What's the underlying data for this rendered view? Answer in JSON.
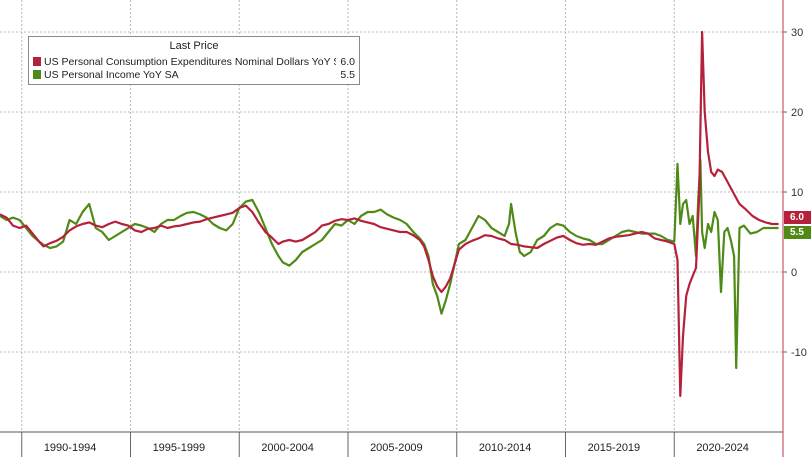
{
  "chart_data": {
    "type": "line",
    "legend": {
      "title": "Last Price",
      "placement": "top-left"
    },
    "x_periods": [
      "1990-1994",
      "1995-1999",
      "2000-2004",
      "2005-2009",
      "2010-2014",
      "2015-2019",
      "2020-2024"
    ],
    "x_range": [
      1989.0,
      2025.0
    ],
    "y_ticks": [
      -10,
      0,
      10,
      20,
      30
    ],
    "ylim": [
      -19,
      31
    ],
    "y_axis_side": "right",
    "grid": true,
    "series": [
      {
        "name": "US Personal Consumption Expenditures Nominal Dollars YoY SA",
        "last_value": 6.0,
        "last_label": "6.0",
        "color": "#b5213a",
        "points": [
          [
            1989.0,
            7.2
          ],
          [
            1989.3,
            6.8
          ],
          [
            1989.6,
            5.8
          ],
          [
            1989.9,
            5.5
          ],
          [
            1990.2,
            5.8
          ],
          [
            1990.5,
            4.8
          ],
          [
            1990.8,
            3.8
          ],
          [
            1991.0,
            3.2
          ],
          [
            1991.3,
            3.6
          ],
          [
            1991.6,
            3.9
          ],
          [
            1991.9,
            4.4
          ],
          [
            1992.2,
            5.2
          ],
          [
            1992.5,
            5.7
          ],
          [
            1992.8,
            6.0
          ],
          [
            1993.1,
            6.2
          ],
          [
            1993.4,
            5.8
          ],
          [
            1993.7,
            5.6
          ],
          [
            1994.0,
            6.0
          ],
          [
            1994.3,
            6.3
          ],
          [
            1994.6,
            6.0
          ],
          [
            1994.9,
            5.8
          ],
          [
            1995.2,
            5.2
          ],
          [
            1995.5,
            5.0
          ],
          [
            1995.8,
            5.4
          ],
          [
            1996.1,
            5.5
          ],
          [
            1996.4,
            5.8
          ],
          [
            1996.7,
            5.5
          ],
          [
            1997.0,
            5.7
          ],
          [
            1997.3,
            5.8
          ],
          [
            1997.6,
            6.0
          ],
          [
            1997.9,
            6.2
          ],
          [
            1998.2,
            6.3
          ],
          [
            1998.5,
            6.6
          ],
          [
            1998.8,
            6.8
          ],
          [
            1999.1,
            7.0
          ],
          [
            1999.4,
            7.2
          ],
          [
            1999.7,
            7.4
          ],
          [
            2000.0,
            8.0
          ],
          [
            2000.3,
            8.3
          ],
          [
            2000.6,
            7.5
          ],
          [
            2000.9,
            6.2
          ],
          [
            2001.2,
            5.0
          ],
          [
            2001.5,
            4.3
          ],
          [
            2001.8,
            3.5
          ],
          [
            2002.0,
            3.8
          ],
          [
            2002.3,
            4.0
          ],
          [
            2002.6,
            3.8
          ],
          [
            2002.9,
            4.0
          ],
          [
            2003.2,
            4.5
          ],
          [
            2003.5,
            5.0
          ],
          [
            2003.8,
            5.8
          ],
          [
            2004.1,
            6.0
          ],
          [
            2004.4,
            6.4
          ],
          [
            2004.7,
            6.6
          ],
          [
            2005.0,
            6.5
          ],
          [
            2005.3,
            6.7
          ],
          [
            2005.6,
            6.4
          ],
          [
            2005.9,
            6.2
          ],
          [
            2006.2,
            6.0
          ],
          [
            2006.5,
            5.6
          ],
          [
            2006.8,
            5.4
          ],
          [
            2007.1,
            5.2
          ],
          [
            2007.4,
            5.0
          ],
          [
            2007.7,
            5.0
          ],
          [
            2008.0,
            4.6
          ],
          [
            2008.3,
            4.0
          ],
          [
            2008.5,
            3.2
          ],
          [
            2008.7,
            1.5
          ],
          [
            2008.9,
            -0.5
          ],
          [
            2009.1,
            -1.8
          ],
          [
            2009.3,
            -2.5
          ],
          [
            2009.5,
            -1.8
          ],
          [
            2009.7,
            -0.8
          ],
          [
            2009.9,
            1.0
          ],
          [
            2010.1,
            2.8
          ],
          [
            2010.4,
            3.5
          ],
          [
            2010.7,
            3.9
          ],
          [
            2011.0,
            4.2
          ],
          [
            2011.3,
            4.6
          ],
          [
            2011.6,
            4.5
          ],
          [
            2011.9,
            4.2
          ],
          [
            2012.2,
            4.0
          ],
          [
            2012.5,
            3.5
          ],
          [
            2012.8,
            3.4
          ],
          [
            2013.1,
            3.2
          ],
          [
            2013.4,
            3.1
          ],
          [
            2013.7,
            3.0
          ],
          [
            2014.0,
            3.5
          ],
          [
            2014.3,
            3.9
          ],
          [
            2014.6,
            4.3
          ],
          [
            2014.9,
            4.5
          ],
          [
            2015.2,
            4.0
          ],
          [
            2015.5,
            3.6
          ],
          [
            2015.8,
            3.4
          ],
          [
            2016.1,
            3.5
          ],
          [
            2016.4,
            3.4
          ],
          [
            2016.7,
            3.8
          ],
          [
            2017.0,
            4.2
          ],
          [
            2017.3,
            4.4
          ],
          [
            2017.6,
            4.5
          ],
          [
            2017.9,
            4.6
          ],
          [
            2018.2,
            4.8
          ],
          [
            2018.5,
            5.0
          ],
          [
            2018.8,
            4.8
          ],
          [
            2019.1,
            4.2
          ],
          [
            2019.4,
            4.0
          ],
          [
            2019.7,
            3.8
          ],
          [
            2020.0,
            3.5
          ],
          [
            2020.15,
            1.5
          ],
          [
            2020.28,
            -15.5
          ],
          [
            2020.4,
            -8.0
          ],
          [
            2020.55,
            -3.0
          ],
          [
            2020.7,
            -1.5
          ],
          [
            2020.85,
            -0.5
          ],
          [
            2021.0,
            0.5
          ],
          [
            2021.15,
            10.0
          ],
          [
            2021.28,
            30.0
          ],
          [
            2021.4,
            20.0
          ],
          [
            2021.55,
            15.0
          ],
          [
            2021.7,
            12.5
          ],
          [
            2021.85,
            12.0
          ],
          [
            2022.0,
            12.8
          ],
          [
            2022.2,
            12.5
          ],
          [
            2022.4,
            11.5
          ],
          [
            2022.6,
            10.5
          ],
          [
            2022.8,
            9.5
          ],
          [
            2023.0,
            8.5
          ],
          [
            2023.3,
            7.8
          ],
          [
            2023.6,
            7.0
          ],
          [
            2023.9,
            6.5
          ],
          [
            2024.2,
            6.2
          ],
          [
            2024.5,
            6.0
          ],
          [
            2024.8,
            6.0
          ]
        ]
      },
      {
        "name": "US Personal Income YoY SA",
        "last_value": 5.5,
        "last_label": "5.5",
        "color": "#4f8a17",
        "points": [
          [
            1989.0,
            7.0
          ],
          [
            1989.3,
            6.5
          ],
          [
            1989.6,
            6.8
          ],
          [
            1989.9,
            6.5
          ],
          [
            1990.2,
            5.5
          ],
          [
            1990.5,
            4.5
          ],
          [
            1990.8,
            3.8
          ],
          [
            1991.0,
            3.4
          ],
          [
            1991.3,
            3.0
          ],
          [
            1991.6,
            3.2
          ],
          [
            1991.9,
            3.8
          ],
          [
            1992.2,
            6.5
          ],
          [
            1992.5,
            6.0
          ],
          [
            1992.8,
            7.5
          ],
          [
            1993.1,
            8.5
          ],
          [
            1993.4,
            5.5
          ],
          [
            1993.7,
            5.0
          ],
          [
            1994.0,
            4.0
          ],
          [
            1994.3,
            4.5
          ],
          [
            1994.6,
            5.0
          ],
          [
            1994.9,
            5.5
          ],
          [
            1995.2,
            6.0
          ],
          [
            1995.5,
            5.8
          ],
          [
            1995.8,
            5.5
          ],
          [
            1996.1,
            5.0
          ],
          [
            1996.4,
            6.0
          ],
          [
            1996.7,
            6.5
          ],
          [
            1997.0,
            6.5
          ],
          [
            1997.3,
            7.0
          ],
          [
            1997.6,
            7.4
          ],
          [
            1997.9,
            7.5
          ],
          [
            1998.2,
            7.2
          ],
          [
            1998.5,
            6.8
          ],
          [
            1998.8,
            6.0
          ],
          [
            1999.1,
            5.5
          ],
          [
            1999.4,
            5.2
          ],
          [
            1999.7,
            6.0
          ],
          [
            2000.0,
            8.0
          ],
          [
            2000.3,
            8.8
          ],
          [
            2000.6,
            9.0
          ],
          [
            2000.9,
            7.5
          ],
          [
            2001.2,
            5.5
          ],
          [
            2001.5,
            3.5
          ],
          [
            2001.8,
            2.0
          ],
          [
            2002.0,
            1.2
          ],
          [
            2002.3,
            0.8
          ],
          [
            2002.6,
            1.5
          ],
          [
            2002.9,
            2.5
          ],
          [
            2003.2,
            3.0
          ],
          [
            2003.5,
            3.5
          ],
          [
            2003.8,
            4.0
          ],
          [
            2004.1,
            5.0
          ],
          [
            2004.4,
            6.0
          ],
          [
            2004.7,
            5.8
          ],
          [
            2005.0,
            6.5
          ],
          [
            2005.3,
            6.0
          ],
          [
            2005.6,
            7.0
          ],
          [
            2005.9,
            7.5
          ],
          [
            2006.2,
            7.5
          ],
          [
            2006.5,
            7.8
          ],
          [
            2006.8,
            7.2
          ],
          [
            2007.1,
            6.8
          ],
          [
            2007.4,
            6.5
          ],
          [
            2007.7,
            6.0
          ],
          [
            2008.0,
            5.0
          ],
          [
            2008.3,
            4.2
          ],
          [
            2008.5,
            3.5
          ],
          [
            2008.7,
            2.0
          ],
          [
            2008.9,
            -1.5
          ],
          [
            2009.1,
            -3.0
          ],
          [
            2009.3,
            -5.2
          ],
          [
            2009.5,
            -3.5
          ],
          [
            2009.7,
            -1.5
          ],
          [
            2009.9,
            1.0
          ],
          [
            2010.1,
            3.5
          ],
          [
            2010.4,
            4.0
          ],
          [
            2010.7,
            5.5
          ],
          [
            2011.0,
            7.0
          ],
          [
            2011.3,
            6.5
          ],
          [
            2011.6,
            5.5
          ],
          [
            2011.9,
            5.0
          ],
          [
            2012.2,
            4.5
          ],
          [
            2012.4,
            6.0
          ],
          [
            2012.5,
            8.5
          ],
          [
            2012.7,
            5.0
          ],
          [
            2012.9,
            2.5
          ],
          [
            2013.1,
            2.0
          ],
          [
            2013.4,
            2.5
          ],
          [
            2013.7,
            4.0
          ],
          [
            2014.0,
            4.5
          ],
          [
            2014.3,
            5.5
          ],
          [
            2014.6,
            6.0
          ],
          [
            2014.9,
            5.8
          ],
          [
            2015.2,
            5.0
          ],
          [
            2015.5,
            4.5
          ],
          [
            2015.8,
            4.2
          ],
          [
            2016.1,
            4.0
          ],
          [
            2016.4,
            3.5
          ],
          [
            2016.7,
            3.5
          ],
          [
            2017.0,
            4.0
          ],
          [
            2017.3,
            4.5
          ],
          [
            2017.6,
            5.0
          ],
          [
            2017.9,
            5.2
          ],
          [
            2018.2,
            5.0
          ],
          [
            2018.5,
            4.8
          ],
          [
            2018.8,
            4.8
          ],
          [
            2019.1,
            4.8
          ],
          [
            2019.4,
            4.5
          ],
          [
            2019.7,
            4.0
          ],
          [
            2020.0,
            3.8
          ],
          [
            2020.15,
            13.5
          ],
          [
            2020.28,
            6.0
          ],
          [
            2020.4,
            8.5
          ],
          [
            2020.55,
            9.0
          ],
          [
            2020.7,
            6.0
          ],
          [
            2020.85,
            7.0
          ],
          [
            2021.0,
            2.0
          ],
          [
            2021.1,
            9.0
          ],
          [
            2021.2,
            14.0
          ],
          [
            2021.28,
            5.0
          ],
          [
            2021.4,
            3.0
          ],
          [
            2021.55,
            6.0
          ],
          [
            2021.7,
            5.0
          ],
          [
            2021.85,
            7.5
          ],
          [
            2022.0,
            6.5
          ],
          [
            2022.15,
            -2.5
          ],
          [
            2022.3,
            5.0
          ],
          [
            2022.45,
            5.5
          ],
          [
            2022.6,
            4.0
          ],
          [
            2022.75,
            2.0
          ],
          [
            2022.85,
            -12.0
          ],
          [
            2023.0,
            5.5
          ],
          [
            2023.2,
            5.8
          ],
          [
            2023.5,
            4.8
          ],
          [
            2023.8,
            5.0
          ],
          [
            2024.1,
            5.5
          ],
          [
            2024.5,
            5.5
          ],
          [
            2024.8,
            5.5
          ]
        ]
      }
    ]
  }
}
